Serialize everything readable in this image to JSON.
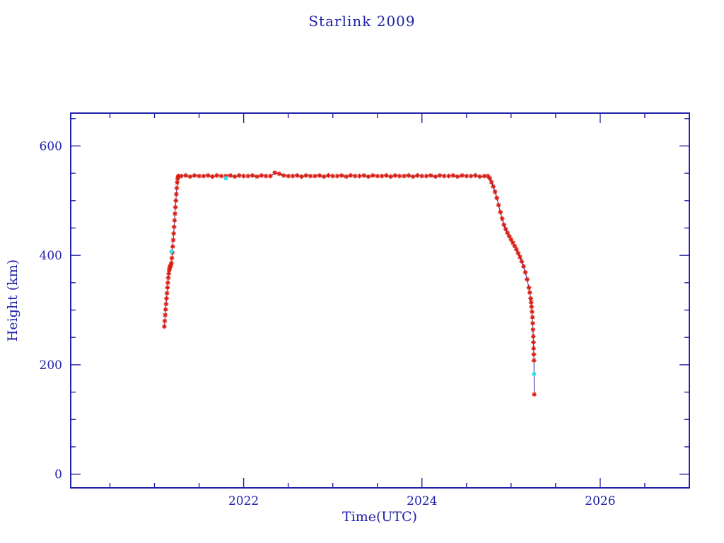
{
  "chart_data": {
    "type": "scatter",
    "title": "Starlink 2009",
    "xlabel": "Time(UTC)",
    "ylabel": "Height (km)",
    "xlim": [
      2020.06,
      2027.0
    ],
    "ylim": [
      -25,
      660
    ],
    "x_major_ticks": [
      2022,
      2024,
      2026
    ],
    "x_minor_step": 0.5,
    "y_major_ticks": [
      0,
      200,
      400,
      600
    ],
    "y_minor_step": 50,
    "grid": false,
    "legend": "none",
    "colors": {
      "background": "#ffffff",
      "frame": "#2121aa",
      "text": "#2121aa",
      "line": "#27279f",
      "red_marker": "#dc1c10",
      "cyan_marker": "#35dfe8"
    },
    "series": [
      {
        "name": "height-red-asterisk",
        "marker": "asterisk",
        "color_key": "red_marker",
        "points": [
          [
            2021.11,
            270
          ],
          [
            2021.115,
            280
          ],
          [
            2021.12,
            291
          ],
          [
            2021.125,
            301
          ],
          [
            2021.13,
            311
          ],
          [
            2021.135,
            321
          ],
          [
            2021.14,
            331
          ],
          [
            2021.145,
            341
          ],
          [
            2021.15,
            350
          ],
          [
            2021.155,
            359
          ],
          [
            2021.16,
            367
          ],
          [
            2021.165,
            373
          ],
          [
            2021.17,
            377
          ],
          [
            2021.175,
            379
          ],
          [
            2021.18,
            381
          ],
          [
            2021.185,
            383
          ],
          [
            2021.19,
            386
          ],
          [
            2021.195,
            395
          ],
          [
            2021.2,
            405
          ],
          [
            2021.205,
            416
          ],
          [
            2021.21,
            428
          ],
          [
            2021.215,
            440
          ],
          [
            2021.22,
            452
          ],
          [
            2021.225,
            464
          ],
          [
            2021.23,
            476
          ],
          [
            2021.235,
            488
          ],
          [
            2021.24,
            500
          ],
          [
            2021.245,
            512
          ],
          [
            2021.25,
            523
          ],
          [
            2021.255,
            533
          ],
          [
            2021.26,
            540
          ],
          [
            2021.265,
            544
          ],
          [
            2021.27,
            545
          ],
          [
            2021.3,
            545
          ],
          [
            2021.35,
            546
          ],
          [
            2021.4,
            544
          ],
          [
            2021.45,
            546
          ],
          [
            2021.5,
            545
          ],
          [
            2021.55,
            545
          ],
          [
            2021.6,
            546
          ],
          [
            2021.65,
            544
          ],
          [
            2021.7,
            546
          ],
          [
            2021.75,
            545
          ],
          [
            2021.8,
            545
          ],
          [
            2021.85,
            546
          ],
          [
            2021.9,
            544
          ],
          [
            2021.95,
            546
          ],
          [
            2022.0,
            545
          ],
          [
            2022.05,
            545
          ],
          [
            2022.1,
            546
          ],
          [
            2022.15,
            544
          ],
          [
            2022.2,
            546
          ],
          [
            2022.25,
            545
          ],
          [
            2022.3,
            545
          ],
          [
            2022.35,
            551
          ],
          [
            2022.4,
            549
          ],
          [
            2022.45,
            546
          ],
          [
            2022.5,
            545
          ],
          [
            2022.55,
            545
          ],
          [
            2022.6,
            546
          ],
          [
            2022.65,
            544
          ],
          [
            2022.7,
            546
          ],
          [
            2022.75,
            545
          ],
          [
            2022.8,
            545
          ],
          [
            2022.85,
            546
          ],
          [
            2022.9,
            544
          ],
          [
            2022.95,
            546
          ],
          [
            2023.0,
            545
          ],
          [
            2023.05,
            545
          ],
          [
            2023.1,
            546
          ],
          [
            2023.15,
            544
          ],
          [
            2023.2,
            546
          ],
          [
            2023.25,
            545
          ],
          [
            2023.3,
            545
          ],
          [
            2023.35,
            546
          ],
          [
            2023.4,
            544
          ],
          [
            2023.45,
            546
          ],
          [
            2023.5,
            545
          ],
          [
            2023.55,
            545
          ],
          [
            2023.6,
            546
          ],
          [
            2023.65,
            544
          ],
          [
            2023.7,
            546
          ],
          [
            2023.75,
            545
          ],
          [
            2023.8,
            545
          ],
          [
            2023.85,
            546
          ],
          [
            2023.9,
            544
          ],
          [
            2023.95,
            546
          ],
          [
            2024.0,
            545
          ],
          [
            2024.05,
            545
          ],
          [
            2024.1,
            546
          ],
          [
            2024.15,
            544
          ],
          [
            2024.2,
            546
          ],
          [
            2024.25,
            545
          ],
          [
            2024.3,
            545
          ],
          [
            2024.35,
            546
          ],
          [
            2024.4,
            544
          ],
          [
            2024.45,
            546
          ],
          [
            2024.5,
            545
          ],
          [
            2024.55,
            545
          ],
          [
            2024.6,
            546
          ],
          [
            2024.65,
            544
          ],
          [
            2024.7,
            545
          ],
          [
            2024.74,
            545
          ],
          [
            2024.76,
            541
          ],
          [
            2024.78,
            534
          ],
          [
            2024.8,
            526
          ],
          [
            2024.82,
            516
          ],
          [
            2024.84,
            505
          ],
          [
            2024.86,
            492
          ],
          [
            2024.88,
            479
          ],
          [
            2024.9,
            467
          ],
          [
            2024.92,
            456
          ],
          [
            2024.94,
            448
          ],
          [
            2024.96,
            441
          ],
          [
            2024.98,
            435
          ],
          [
            2025.0,
            429
          ],
          [
            2025.02,
            423
          ],
          [
            2025.04,
            417
          ],
          [
            2025.06,
            411
          ],
          [
            2025.08,
            404
          ],
          [
            2025.1,
            397
          ],
          [
            2025.12,
            389
          ],
          [
            2025.14,
            380
          ],
          [
            2025.16,
            369
          ],
          [
            2025.18,
            356
          ],
          [
            2025.2,
            341
          ],
          [
            2025.21,
            332
          ],
          [
            2025.22,
            321
          ],
          [
            2025.225,
            314
          ],
          [
            2025.23,
            306
          ],
          [
            2025.235,
            297
          ],
          [
            2025.24,
            287
          ],
          [
            2025.243,
            276
          ],
          [
            2025.246,
            264
          ],
          [
            2025.249,
            252
          ],
          [
            2025.251,
            241
          ],
          [
            2025.253,
            230
          ],
          [
            2025.255,
            219
          ],
          [
            2025.257,
            208
          ],
          [
            2025.26,
            146
          ]
        ]
      },
      {
        "name": "height-cyan-circle",
        "marker": "circle",
        "color_key": "cyan_marker",
        "points": [
          [
            2021.19,
            407
          ],
          [
            2021.8,
            541
          ],
          [
            2025.258,
            183
          ]
        ]
      }
    ]
  }
}
